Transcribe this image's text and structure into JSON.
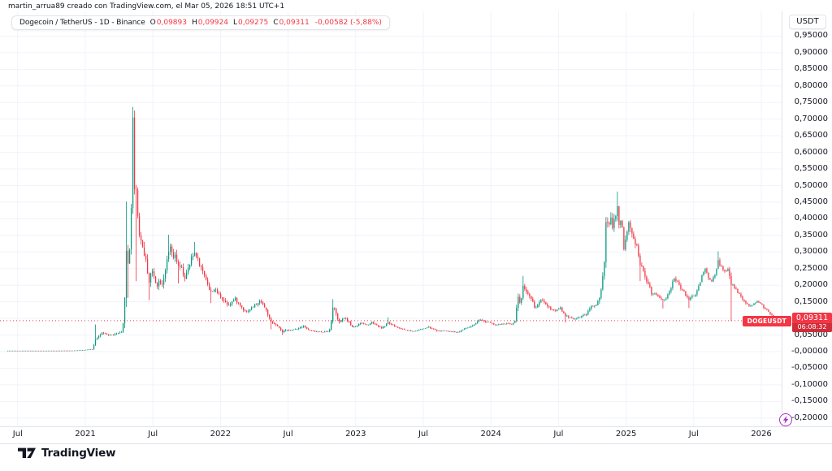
{
  "attribution": "martin_arrua89 creado con TradingView.com, el Mar 05, 2026 18:51 UTC+1",
  "legend": {
    "title": "Dogecoin / TetherUS - 1D - Binance",
    "o_label": "O",
    "o": "0,09893",
    "h_label": "H",
    "h": "0,09924",
    "l_label": "L",
    "l": "0,09275",
    "c_label": "C",
    "c": "0,09311",
    "change": "-0,00582 (-5,88%)"
  },
  "price_scale": {
    "currency_button": "USDT",
    "price_label": {
      "ticker": "DOGEUSDT",
      "price": "0,09311",
      "countdown": "06:08:32"
    },
    "ticks": [
      {
        "p": 0.95,
        "label": "0,95000"
      },
      {
        "p": 0.9,
        "label": "0,90000"
      },
      {
        "p": 0.85,
        "label": "0,85000"
      },
      {
        "p": 0.8,
        "label": "0,80000"
      },
      {
        "p": 0.75,
        "label": "0,75000"
      },
      {
        "p": 0.7,
        "label": "0,70000"
      },
      {
        "p": 0.65,
        "label": "0,65000"
      },
      {
        "p": 0.6,
        "label": "0,60000"
      },
      {
        "p": 0.55,
        "label": "0,55000"
      },
      {
        "p": 0.5,
        "label": "0,50000"
      },
      {
        "p": 0.45,
        "label": "0,45000"
      },
      {
        "p": 0.4,
        "label": "0,40000"
      },
      {
        "p": 0.35,
        "label": "0,35000"
      },
      {
        "p": 0.3,
        "label": "0,30000"
      },
      {
        "p": 0.25,
        "label": "0,25000"
      },
      {
        "p": 0.2,
        "label": "0,20000"
      },
      {
        "p": 0.15,
        "label": "0,15000"
      },
      {
        "p": 0.1,
        "label": "0,10000"
      },
      {
        "p": 0.05,
        "label": "0,05000"
      },
      {
        "p": 0.0,
        "label": "-0,00000"
      },
      {
        "p": -0.05,
        "label": "-0,05000"
      },
      {
        "p": -0.1,
        "label": "-0,10000"
      },
      {
        "p": -0.15,
        "label": "-0,15000"
      },
      {
        "p": -0.2,
        "label": "-0,20000"
      }
    ]
  },
  "time_scale": {
    "ticks": [
      {
        "t": 2020.5,
        "label": "Jul",
        "year": false
      },
      {
        "t": 2021.0,
        "label": "2021",
        "year": true
      },
      {
        "t": 2021.5,
        "label": "Jul",
        "year": false
      },
      {
        "t": 2022.0,
        "label": "2022",
        "year": true
      },
      {
        "t": 2022.5,
        "label": "Jul",
        "year": false
      },
      {
        "t": 2023.0,
        "label": "2023",
        "year": true
      },
      {
        "t": 2023.5,
        "label": "Jul",
        "year": false
      },
      {
        "t": 2024.0,
        "label": "2024",
        "year": true
      },
      {
        "t": 2024.5,
        "label": "Jul",
        "year": false
      },
      {
        "t": 2025.0,
        "label": "2025",
        "year": true
      },
      {
        "t": 2025.5,
        "label": "Jul",
        "year": false
      },
      {
        "t": 2026.0,
        "label": "2026",
        "year": true
      }
    ]
  },
  "footer": {
    "brand": "TradingView"
  },
  "colors": {
    "up": "#089981",
    "down": "#f23645",
    "grid": "#f0f3fa",
    "text": "#131722",
    "axis_border": "#e0e3eb",
    "accent_red": "#f23645",
    "flash_purple": "#a832c9"
  },
  "chart_data": {
    "type": "candlestick",
    "symbol": "DOGEUSDT",
    "exchange": "Binance",
    "interval": "1D",
    "last_ohlc": {
      "open": 0.09893,
      "high": 0.09924,
      "low": 0.09275,
      "close": 0.09311
    },
    "change_abs": -0.00582,
    "change_pct": -5.88,
    "current_price": 0.09311,
    "y_axis": {
      "min": -0.228,
      "max": 1.025,
      "tick_step": 0.05,
      "currency": "USDT"
    },
    "x_axis": {
      "start": 2020.42,
      "end": 2026.108,
      "unit": "decimal_year"
    },
    "keypoints": [
      [
        2020.42,
        0.0026,
        0.0005
      ],
      [
        2020.6,
        0.0027,
        0.0005
      ],
      [
        2020.78,
        0.0026,
        0.0004
      ],
      [
        2020.92,
        0.0031,
        0.0009
      ],
      [
        2021.0,
        0.0048,
        0.0016
      ],
      [
        2021.06,
        0.0072,
        0.0032
      ],
      [
        2021.082,
        0.04,
        0.022
      ],
      [
        2021.1,
        0.046,
        0.012
      ],
      [
        2021.13,
        0.055,
        0.012
      ],
      [
        2021.16,
        0.051,
        0.008
      ],
      [
        2021.2,
        0.05,
        0.007
      ],
      [
        2021.24,
        0.054,
        0.008
      ],
      [
        2021.28,
        0.058,
        0.01
      ],
      [
        2021.295,
        0.12,
        0.035
      ],
      [
        2021.305,
        0.31,
        0.09
      ],
      [
        2021.315,
        0.28,
        0.05
      ],
      [
        2021.325,
        0.26,
        0.06
      ],
      [
        2021.335,
        0.32,
        0.05
      ],
      [
        2021.345,
        0.42,
        0.06
      ],
      [
        2021.352,
        0.56,
        0.07
      ],
      [
        2021.358,
        0.7,
        0.05
      ],
      [
        2021.364,
        0.6,
        0.08
      ],
      [
        2021.37,
        0.5,
        0.07
      ],
      [
        2021.376,
        0.53,
        0.05
      ],
      [
        2021.382,
        0.49,
        0.06
      ],
      [
        2021.388,
        0.38,
        0.1
      ],
      [
        2021.394,
        0.41,
        0.05
      ],
      [
        2021.4,
        0.37,
        0.05
      ],
      [
        2021.42,
        0.33,
        0.04
      ],
      [
        2021.44,
        0.3,
        0.04
      ],
      [
        2021.46,
        0.26,
        0.04
      ],
      [
        2021.478,
        0.21,
        0.035
      ],
      [
        2021.495,
        0.245,
        0.03
      ],
      [
        2021.515,
        0.225,
        0.028
      ],
      [
        2021.535,
        0.2,
        0.026
      ],
      [
        2021.555,
        0.215,
        0.025
      ],
      [
        2021.575,
        0.205,
        0.028
      ],
      [
        2021.6,
        0.25,
        0.03
      ],
      [
        2021.625,
        0.3,
        0.04
      ],
      [
        2021.64,
        0.32,
        0.03
      ],
      [
        2021.655,
        0.27,
        0.03
      ],
      [
        2021.675,
        0.295,
        0.03
      ],
      [
        2021.69,
        0.25,
        0.045
      ],
      [
        2021.715,
        0.255,
        0.025
      ],
      [
        2021.74,
        0.22,
        0.025
      ],
      [
        2021.77,
        0.25,
        0.03
      ],
      [
        2021.795,
        0.285,
        0.03
      ],
      [
        2021.82,
        0.3,
        0.03
      ],
      [
        2021.845,
        0.27,
        0.028
      ],
      [
        2021.87,
        0.245,
        0.025
      ],
      [
        2021.895,
        0.225,
        0.022
      ],
      [
        2021.915,
        0.2,
        0.022
      ],
      [
        2021.93,
        0.175,
        0.028
      ],
      [
        2021.955,
        0.19,
        0.022
      ],
      [
        2021.975,
        0.18,
        0.02
      ],
      [
        2022.01,
        0.165,
        0.018
      ],
      [
        2022.04,
        0.15,
        0.018
      ],
      [
        2022.065,
        0.142,
        0.02
      ],
      [
        2022.09,
        0.15,
        0.016
      ],
      [
        2022.115,
        0.158,
        0.018
      ],
      [
        2022.14,
        0.145,
        0.015
      ],
      [
        2022.17,
        0.13,
        0.014
      ],
      [
        2022.2,
        0.12,
        0.013
      ],
      [
        2022.23,
        0.13,
        0.013
      ],
      [
        2022.26,
        0.14,
        0.014
      ],
      [
        2022.285,
        0.145,
        0.014
      ],
      [
        2022.305,
        0.155,
        0.018
      ],
      [
        2022.33,
        0.135,
        0.016
      ],
      [
        2022.355,
        0.115,
        0.018
      ],
      [
        2022.375,
        0.088,
        0.016
      ],
      [
        2022.41,
        0.082,
        0.01
      ],
      [
        2022.44,
        0.07,
        0.009
      ],
      [
        2022.465,
        0.058,
        0.009
      ],
      [
        2022.5,
        0.067,
        0.007
      ],
      [
        2022.53,
        0.063,
        0.006
      ],
      [
        2022.56,
        0.068,
        0.007
      ],
      [
        2022.59,
        0.072,
        0.008
      ],
      [
        2022.62,
        0.079,
        0.009
      ],
      [
        2022.65,
        0.066,
        0.007
      ],
      [
        2022.68,
        0.062,
        0.006
      ],
      [
        2022.72,
        0.06,
        0.005
      ],
      [
        2022.76,
        0.059,
        0.005
      ],
      [
        2022.8,
        0.061,
        0.006
      ],
      [
        2022.822,
        0.074,
        0.012
      ],
      [
        2022.832,
        0.12,
        0.028
      ],
      [
        2022.842,
        0.142,
        0.022
      ],
      [
        2022.855,
        0.125,
        0.016
      ],
      [
        2022.87,
        0.094,
        0.018
      ],
      [
        2022.895,
        0.089,
        0.01
      ],
      [
        2022.92,
        0.103,
        0.011
      ],
      [
        2022.95,
        0.092,
        0.009
      ],
      [
        2022.98,
        0.074,
        0.008
      ],
      [
        2023.01,
        0.077,
        0.007
      ],
      [
        2023.05,
        0.086,
        0.009
      ],
      [
        2023.09,
        0.08,
        0.007
      ],
      [
        2023.125,
        0.089,
        0.009
      ],
      [
        2023.16,
        0.08,
        0.007
      ],
      [
        2023.195,
        0.071,
        0.007
      ],
      [
        2023.22,
        0.076,
        0.007
      ],
      [
        2023.24,
        0.088,
        0.011
      ],
      [
        2023.27,
        0.081,
        0.007
      ],
      [
        2023.31,
        0.073,
        0.006
      ],
      [
        2023.35,
        0.068,
        0.005
      ],
      [
        2023.39,
        0.064,
        0.005
      ],
      [
        2023.43,
        0.061,
        0.004
      ],
      [
        2023.47,
        0.065,
        0.005
      ],
      [
        2023.51,
        0.069,
        0.005
      ],
      [
        2023.545,
        0.074,
        0.006
      ],
      [
        2023.58,
        0.067,
        0.005
      ],
      [
        2023.615,
        0.062,
        0.005
      ],
      [
        2023.65,
        0.063,
        0.004
      ],
      [
        2023.69,
        0.061,
        0.004
      ],
      [
        2023.73,
        0.06,
        0.004
      ],
      [
        2023.76,
        0.058,
        0.004
      ],
      [
        2023.8,
        0.067,
        0.006
      ],
      [
        2023.84,
        0.073,
        0.006
      ],
      [
        2023.875,
        0.078,
        0.007
      ],
      [
        2023.91,
        0.09,
        0.009
      ],
      [
        2023.935,
        0.096,
        0.009
      ],
      [
        2023.96,
        0.09,
        0.007
      ],
      [
        2024.0,
        0.089,
        0.007
      ],
      [
        2024.04,
        0.08,
        0.006
      ],
      [
        2024.08,
        0.082,
        0.006
      ],
      [
        2024.12,
        0.085,
        0.006
      ],
      [
        2024.16,
        0.083,
        0.006
      ],
      [
        2024.185,
        0.095,
        0.012
      ],
      [
        2024.205,
        0.165,
        0.028
      ],
      [
        2024.225,
        0.145,
        0.02
      ],
      [
        2024.245,
        0.198,
        0.022
      ],
      [
        2024.265,
        0.185,
        0.018
      ],
      [
        2024.29,
        0.165,
        0.018
      ],
      [
        2024.315,
        0.15,
        0.016
      ],
      [
        2024.335,
        0.128,
        0.014
      ],
      [
        2024.36,
        0.148,
        0.015
      ],
      [
        2024.385,
        0.158,
        0.015
      ],
      [
        2024.42,
        0.14,
        0.013
      ],
      [
        2024.455,
        0.126,
        0.011
      ],
      [
        2024.49,
        0.124,
        0.01
      ],
      [
        2024.52,
        0.133,
        0.011
      ],
      [
        2024.555,
        0.106,
        0.012
      ],
      [
        2024.59,
        0.104,
        0.008
      ],
      [
        2024.63,
        0.098,
        0.007
      ],
      [
        2024.67,
        0.106,
        0.008
      ],
      [
        2024.71,
        0.112,
        0.009
      ],
      [
        2024.75,
        0.135,
        0.013
      ],
      [
        2024.79,
        0.142,
        0.013
      ],
      [
        2024.825,
        0.185,
        0.03
      ],
      [
        2024.845,
        0.27,
        0.042
      ],
      [
        2024.86,
        0.405,
        0.048
      ],
      [
        2024.875,
        0.365,
        0.042
      ],
      [
        2024.89,
        0.42,
        0.038
      ],
      [
        2024.905,
        0.37,
        0.036
      ],
      [
        2024.925,
        0.405,
        0.036
      ],
      [
        2024.94,
        0.435,
        0.042
      ],
      [
        2024.955,
        0.385,
        0.038
      ],
      [
        2024.97,
        0.4,
        0.032
      ],
      [
        2024.99,
        0.315,
        0.036
      ],
      [
        2025.005,
        0.335,
        0.03
      ],
      [
        2025.025,
        0.395,
        0.032
      ],
      [
        2025.045,
        0.36,
        0.028
      ],
      [
        2025.07,
        0.33,
        0.026
      ],
      [
        2025.09,
        0.32,
        0.026
      ],
      [
        2025.105,
        0.26,
        0.04
      ],
      [
        2025.13,
        0.255,
        0.022
      ],
      [
        2025.155,
        0.21,
        0.024
      ],
      [
        2025.175,
        0.205,
        0.018
      ],
      [
        2025.195,
        0.17,
        0.018
      ],
      [
        2025.22,
        0.178,
        0.015
      ],
      [
        2025.25,
        0.165,
        0.014
      ],
      [
        2025.275,
        0.156,
        0.015
      ],
      [
        2025.305,
        0.163,
        0.013
      ],
      [
        2025.33,
        0.182,
        0.014
      ],
      [
        2025.36,
        0.22,
        0.017
      ],
      [
        2025.385,
        0.212,
        0.015
      ],
      [
        2025.41,
        0.19,
        0.014
      ],
      [
        2025.44,
        0.176,
        0.013
      ],
      [
        2025.465,
        0.156,
        0.013
      ],
      [
        2025.49,
        0.166,
        0.012
      ],
      [
        2025.52,
        0.172,
        0.013
      ],
      [
        2025.55,
        0.205,
        0.016
      ],
      [
        2025.575,
        0.24,
        0.018
      ],
      [
        2025.59,
        0.252,
        0.016
      ],
      [
        2025.61,
        0.225,
        0.015
      ],
      [
        2025.635,
        0.212,
        0.014
      ],
      [
        2025.66,
        0.228,
        0.014
      ],
      [
        2025.687,
        0.272,
        0.018
      ],
      [
        2025.705,
        0.258,
        0.015
      ],
      [
        2025.725,
        0.246,
        0.014
      ],
      [
        2025.745,
        0.238,
        0.013
      ],
      [
        2025.765,
        0.255,
        0.014
      ],
      [
        2025.778,
        0.205,
        0.03
      ],
      [
        2025.8,
        0.196,
        0.015
      ],
      [
        2025.825,
        0.183,
        0.013
      ],
      [
        2025.85,
        0.168,
        0.012
      ],
      [
        2025.875,
        0.152,
        0.011
      ],
      [
        2025.9,
        0.143,
        0.01
      ],
      [
        2025.925,
        0.136,
        0.01
      ],
      [
        2025.95,
        0.145,
        0.01
      ],
      [
        2025.975,
        0.15,
        0.009
      ],
      [
        2026.0,
        0.146,
        0.009
      ],
      [
        2026.025,
        0.133,
        0.009
      ],
      [
        2026.05,
        0.124,
        0.008
      ],
      [
        2026.075,
        0.113,
        0.008
      ],
      [
        2026.095,
        0.104,
        0.007
      ],
      [
        2026.108,
        0.0931,
        0.006
      ]
    ],
    "spikes": [
      {
        "t": 2021.082,
        "high": 0.082
      },
      {
        "t": 2021.305,
        "high": 0.452
      },
      {
        "t": 2021.325,
        "low": 0.162
      },
      {
        "t": 2021.358,
        "high": 0.737
      },
      {
        "t": 2021.388,
        "low": 0.212
      },
      {
        "t": 2021.478,
        "low": 0.155
      },
      {
        "t": 2021.625,
        "high": 0.352
      },
      {
        "t": 2021.69,
        "low": 0.205
      },
      {
        "t": 2021.82,
        "high": 0.33
      },
      {
        "t": 2021.93,
        "low": 0.146
      },
      {
        "t": 2022.375,
        "low": 0.067
      },
      {
        "t": 2022.465,
        "low": 0.05
      },
      {
        "t": 2022.842,
        "high": 0.158
      },
      {
        "t": 2023.24,
        "high": 0.103
      },
      {
        "t": 2024.245,
        "high": 0.228
      },
      {
        "t": 2024.555,
        "low": 0.088
      },
      {
        "t": 2024.94,
        "high": 0.482
      },
      {
        "t": 2025.105,
        "low": 0.212
      },
      {
        "t": 2025.275,
        "low": 0.13
      },
      {
        "t": 2025.465,
        "low": 0.131
      },
      {
        "t": 2025.687,
        "high": 0.302
      },
      {
        "t": 2025.778,
        "low": 0.093
      },
      {
        "t": 2026.095,
        "low": 0.098
      }
    ]
  }
}
